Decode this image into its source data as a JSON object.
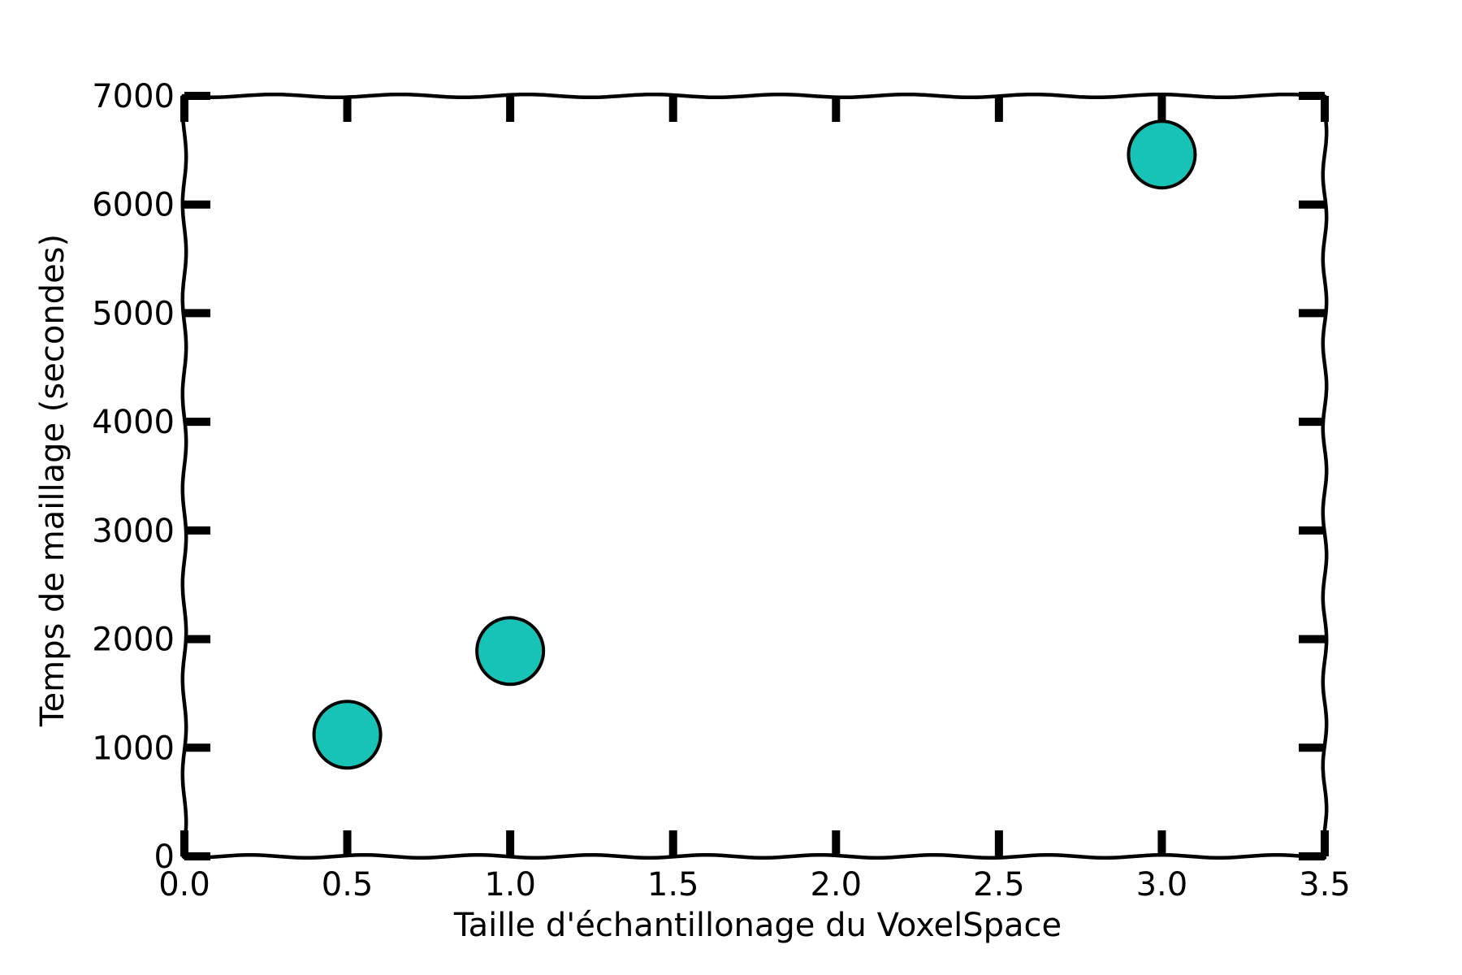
{
  "chart_data": {
    "type": "scatter",
    "title": "",
    "xlabel": "Taille d'échantillonage du VoxelSpace",
    "ylabel": "Temps de maillage (secondes)",
    "xlim": [
      0.0,
      3.5
    ],
    "ylim": [
      0,
      7000
    ],
    "xticks": [
      "0.0",
      "0.5",
      "1.0",
      "1.5",
      "2.0",
      "2.5",
      "3.0",
      "3.5"
    ],
    "yticks": [
      "0",
      "1000",
      "2000",
      "3000",
      "4000",
      "5000",
      "6000",
      "7000"
    ],
    "grid": false,
    "legend": "none",
    "marker_color": "#17c3b6",
    "marker_edge_color": "#000000",
    "points": [
      {
        "x": 0.5,
        "y": 1120
      },
      {
        "x": 1.0,
        "y": 1890
      },
      {
        "x": 3.0,
        "y": 6460
      }
    ]
  }
}
